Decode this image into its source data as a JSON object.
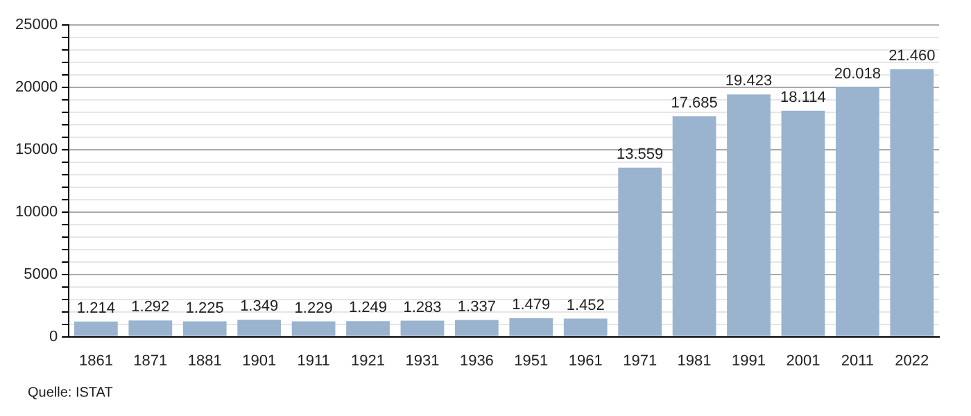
{
  "chart_data": {
    "type": "bar",
    "categories": [
      "1861",
      "1871",
      "1881",
      "1901",
      "1911",
      "1921",
      "1931",
      "1936",
      "1951",
      "1961",
      "1971",
      "1981",
      "1991",
      "2001",
      "2011",
      "2022"
    ],
    "values": [
      1214,
      1292,
      1225,
      1349,
      1229,
      1249,
      1283,
      1337,
      1479,
      1452,
      13559,
      17685,
      19423,
      18114,
      20018,
      21460
    ],
    "value_labels": [
      "1.214",
      "1.292",
      "1.225",
      "1.349",
      "1.229",
      "1.249",
      "1.283",
      "1.337",
      "1.479",
      "1.452",
      "13.559",
      "17.685",
      "19.423",
      "18.114",
      "20.018",
      "21.460"
    ],
    "color": "#9ab3cf",
    "ylim": [
      0,
      25000
    ],
    "yticks": [
      0,
      {
        "value": 1000,
        "label": null
      },
      {
        "value": 2000,
        "label": null
      },
      {
        "value": 3000,
        "label": null
      },
      {
        "value": 4000,
        "label": null
      },
      5000,
      {
        "value": 6000,
        "label": null
      },
      {
        "value": 7000,
        "label": null
      },
      {
        "value": 8000,
        "label": null
      },
      {
        "value": 9000,
        "label": null
      },
      10000,
      {
        "value": 11000,
        "label": null
      },
      {
        "value": 12000,
        "label": null
      },
      {
        "value": 13000,
        "label": null
      },
      {
        "value": 14000,
        "label": null
      },
      15000,
      {
        "value": 16000,
        "label": null
      },
      {
        "value": 17000,
        "label": null
      },
      {
        "value": 18000,
        "label": null
      },
      {
        "value": 19000,
        "label": null
      },
      20000,
      {
        "value": 21000,
        "label": null
      },
      {
        "value": 22000,
        "label": null
      },
      {
        "value": 23000,
        "label": null
      },
      {
        "value": 24000,
        "label": null
      },
      25000
    ],
    "grid": true,
    "annotations": [
      "Quelle: ISTAT"
    ]
  }
}
